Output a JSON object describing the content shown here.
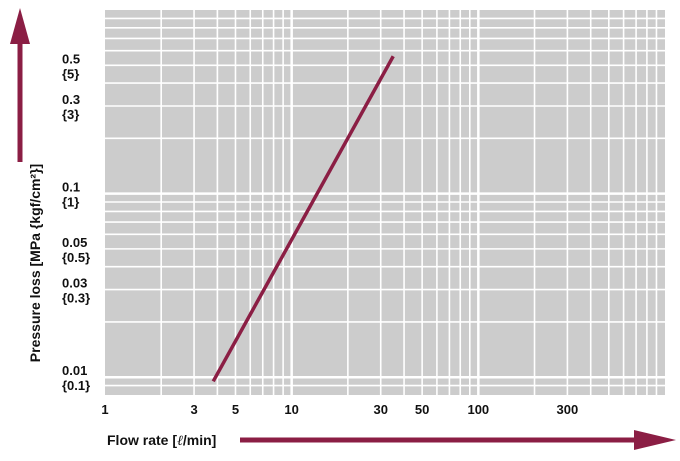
{
  "chart_data": {
    "type": "line",
    "xlabel_prefix": "Flow rate [",
    "xlabel_unit": "ℓ",
    "xlabel_suffix": "/min]",
    "ylabel": "Pressure loss [MPa {kgf/cm²}]",
    "x_scale": "log",
    "y_scale": "log",
    "xlim": [
      1,
      1000
    ],
    "ylim": [
      0.008,
      1
    ],
    "grid": true,
    "x_ticks": [
      {
        "value": 1,
        "label": "1"
      },
      {
        "value": 3,
        "label": "3"
      },
      {
        "value": 5,
        "label": "5"
      },
      {
        "value": 10,
        "label": "10"
      },
      {
        "value": 30,
        "label": "30"
      },
      {
        "value": 50,
        "label": "50"
      },
      {
        "value": 100,
        "label": "100"
      },
      {
        "value": 300,
        "label": "300"
      }
    ],
    "y_ticks": [
      {
        "value": 0.5,
        "label": "0.5",
        "sublabel": "{5}"
      },
      {
        "value": 0.3,
        "label": "0.3",
        "sublabel": "{3}"
      },
      {
        "value": 0.1,
        "label": "0.1",
        "sublabel": "{1}"
      },
      {
        "value": 0.05,
        "label": "0.05",
        "sublabel": "{0.5}"
      },
      {
        "value": 0.03,
        "label": "0.03",
        "sublabel": "{0.3}"
      },
      {
        "value": 0.01,
        "label": "0.01",
        "sublabel": "{0.1}"
      }
    ],
    "series": [
      {
        "x": [
          3.8,
          35
        ],
        "y": [
          0.0095,
          0.56
        ]
      }
    ],
    "colors": {
      "plot_bg": "#cccccc",
      "grid": "#ffffff",
      "line": "#8b1e44",
      "arrow": "#8b1e44"
    }
  }
}
